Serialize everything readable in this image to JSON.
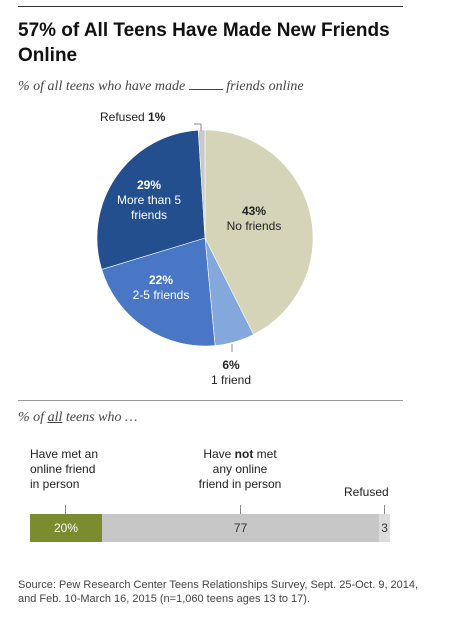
{
  "title": "57% of All Teens Have Made New Friends Online",
  "subtitle_before": "% of all teens who have made",
  "subtitle_after": "friends online",
  "section2_prefix": "% of",
  "section2_emph": "all",
  "section2_suffix": "teens who …",
  "chart_data": [
    {
      "type": "pie",
      "title": "57% of All Teens Have Made New Friends Online",
      "slices": [
        {
          "label": "No friends",
          "value": 43,
          "display": "43%",
          "color": "#d5d3b8"
        },
        {
          "label": "1 friend",
          "value": 6,
          "display": "6%",
          "color": "#85a8dc"
        },
        {
          "label": "2-5 friends",
          "value": 22,
          "display": "22%",
          "color": "#4a76c6"
        },
        {
          "label": "More than 5 friends",
          "value": 29,
          "display": "29%",
          "color": "#244f8e"
        },
        {
          "label": "Refused",
          "value": 1,
          "display": "1%",
          "color": "#c9c9c9"
        }
      ]
    },
    {
      "type": "bar",
      "orientation": "horizontal-stacked",
      "segments": [
        {
          "label": "Have met an online friend in person",
          "value": 20,
          "display": "20%",
          "color": "#7a8c2e"
        },
        {
          "label": "Have not met any online friend in person",
          "value": 77,
          "display": "77",
          "color": "#c7c7c7"
        },
        {
          "label": "Refused",
          "value": 3,
          "display": "3",
          "color": "#dcdcdc"
        }
      ]
    }
  ],
  "pie_labels": {
    "no_friends_pct": "43%",
    "no_friends_name": "No friends",
    "one_pct": "6%",
    "one_name": "1 friend",
    "two_five_pct": "22%",
    "two_five_name": "2-5 friends",
    "more5_pct": "29%",
    "more5_line1": "More than 5",
    "more5_line2": "friends",
    "refused_name": "Refused",
    "refused_pct": "1%"
  },
  "bar_labels": {
    "met_line1": "Have met an",
    "met_line2": "online friend",
    "met_line3": "in person",
    "notmet_line1a": "Have",
    "notmet_emph": "not",
    "notmet_line1b": "met",
    "notmet_line2": "any online",
    "notmet_line3": "friend in person",
    "refused": "Refused"
  },
  "source": "Source: Pew Research Center Teens Relationships Survey, Sept. 25-Oct. 9, 2014, and Feb. 10-March 16, 2015 (n=1,060 teens ages 13 to 17)."
}
